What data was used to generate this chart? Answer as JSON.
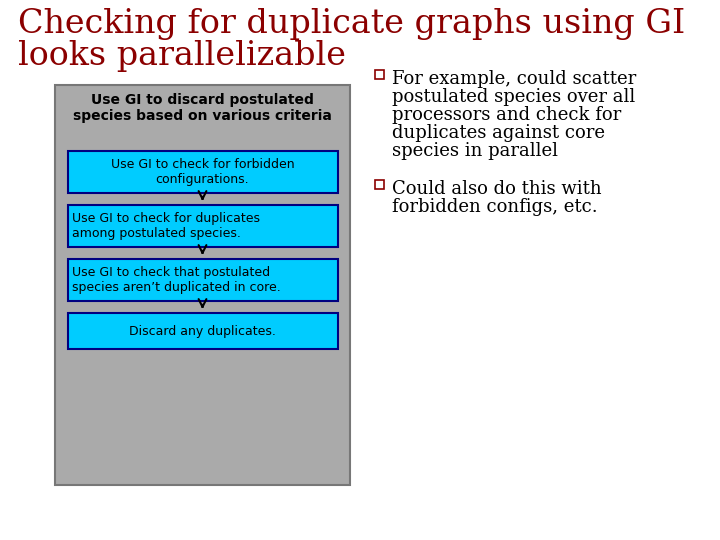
{
  "title_line1": "Checking for duplicate graphs using GI",
  "title_line2": "looks parallelizable",
  "title_color": "#8B0000",
  "title_fontsize": 24,
  "bg_color": "#FFFFFF",
  "flowchart_bg": "#AAAAAA",
  "flowchart_border": "#777777",
  "box_color": "#00CCFF",
  "box_border_color": "#000080",
  "box_texts": [
    "Use GI to check for forbidden\nconfigurations.",
    "Use GI to check for duplicates\namong postulated species.",
    "Use GI to check that postulated\nspecies aren’t duplicated in core.",
    "Discard any duplicates."
  ],
  "box_text_align": [
    "center",
    "left",
    "left",
    "center"
  ],
  "header_text": "Use GI to discard postulated\nspecies based on various criteria",
  "bullet_sq_color": "#8B0000",
  "bullet_fontsize": 13,
  "bullet1_lines": [
    "For example, could scatter",
    "postulated species over all",
    "processors and check for",
    "duplicates against core",
    "species in parallel"
  ],
  "bullet2_lines": [
    "Could also do this with",
    "forbidden configs, etc."
  ]
}
